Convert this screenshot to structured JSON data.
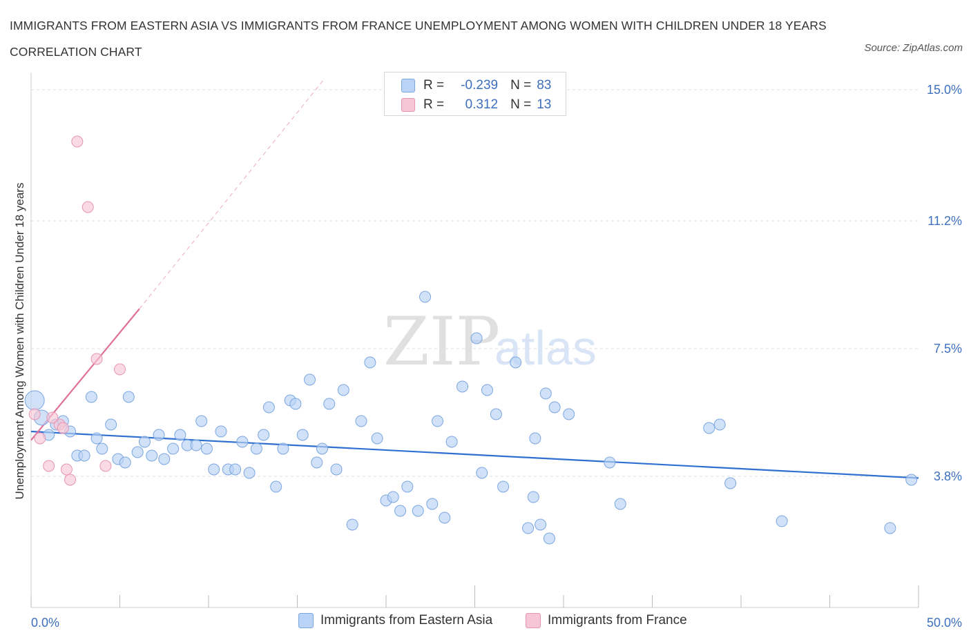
{
  "title": "IMMIGRANTS FROM EASTERN ASIA VS IMMIGRANTS FROM FRANCE UNEMPLOYMENT AMONG WOMEN WITH CHILDREN UNDER 18 YEARS CORRELATION CHART",
  "source": "Source: ZipAtlas.com",
  "watermark": {
    "zip": "ZIP",
    "atlas": "atlas"
  },
  "legend": {
    "rows": [
      {
        "r_label": "R =",
        "r_value": "-0.239",
        "n_label": "N =",
        "n_value": "83",
        "fill": "#b8d3f5",
        "stroke": "#7aa6e0"
      },
      {
        "r_label": "R =",
        "r_value": "0.312",
        "n_label": "N =",
        "n_value": "13",
        "fill": "#f7c6d6",
        "stroke": "#e695b2"
      }
    ]
  },
  "colors": {
    "blue_fill": "#b8d3f5",
    "blue_stroke": "#7aa6e0",
    "blue_line": "#2f6fd0",
    "pink_fill": "#f7c6d6",
    "pink_stroke": "#e695b2",
    "pink_line": "#e0709a",
    "axis_label": "#3d6fbf",
    "grid": "#dddddd"
  },
  "chart_data": {
    "type": "scatter",
    "title": "IMMIGRANTS FROM EASTERN ASIA VS IMMIGRANTS FROM FRANCE UNEMPLOYMENT AMONG WOMEN WITH CHILDREN UNDER 18 YEARS CORRELATION CHART",
    "xlabel": "",
    "ylabel": "Unemployment Among Women with Children Under 18 years",
    "xlim": [
      0,
      50
    ],
    "ylim": [
      0,
      15.3
    ],
    "x_tick_labels": [
      "0.0%",
      "50.0%"
    ],
    "y_ticks": [
      3.8,
      7.5,
      11.2,
      15.0
    ],
    "y_tick_labels": [
      "3.8%",
      "7.5%",
      "11.2%",
      "15.0%"
    ],
    "grid": true,
    "legend_position": "top-center",
    "series": [
      {
        "name": "Immigrants from Eastern Asia",
        "color": "#7aa6e0",
        "points": [
          [
            0.2,
            6.0
          ],
          [
            0.6,
            5.5
          ],
          [
            1.0,
            5.0
          ],
          [
            1.4,
            5.3
          ],
          [
            1.8,
            5.4
          ],
          [
            2.2,
            5.1
          ],
          [
            2.6,
            4.4
          ],
          [
            3.0,
            4.4
          ],
          [
            3.4,
            6.1
          ],
          [
            3.7,
            4.9
          ],
          [
            4.0,
            4.6
          ],
          [
            4.5,
            5.3
          ],
          [
            4.9,
            4.3
          ],
          [
            5.3,
            4.2
          ],
          [
            5.5,
            6.1
          ],
          [
            6.0,
            4.5
          ],
          [
            6.4,
            4.8
          ],
          [
            6.8,
            4.4
          ],
          [
            7.2,
            5.0
          ],
          [
            7.5,
            4.3
          ],
          [
            8.0,
            4.6
          ],
          [
            8.4,
            5.0
          ],
          [
            8.8,
            4.7
          ],
          [
            9.3,
            4.7
          ],
          [
            9.6,
            5.4
          ],
          [
            9.9,
            4.6
          ],
          [
            10.3,
            4.0
          ],
          [
            10.7,
            5.1
          ],
          [
            11.1,
            4.0
          ],
          [
            11.5,
            4.0
          ],
          [
            11.9,
            4.8
          ],
          [
            12.3,
            3.9
          ],
          [
            12.7,
            4.6
          ],
          [
            13.1,
            5.0
          ],
          [
            13.4,
            5.8
          ],
          [
            13.8,
            3.5
          ],
          [
            14.2,
            4.6
          ],
          [
            14.6,
            6.0
          ],
          [
            14.9,
            5.9
          ],
          [
            15.3,
            5.0
          ],
          [
            15.7,
            6.6
          ],
          [
            16.1,
            4.2
          ],
          [
            16.4,
            4.6
          ],
          [
            16.8,
            5.9
          ],
          [
            17.2,
            4.0
          ],
          [
            17.6,
            6.3
          ],
          [
            18.1,
            2.4
          ],
          [
            18.6,
            5.4
          ],
          [
            19.1,
            7.1
          ],
          [
            19.5,
            4.9
          ],
          [
            20.0,
            3.1
          ],
          [
            20.4,
            3.2
          ],
          [
            20.8,
            2.8
          ],
          [
            21.2,
            3.5
          ],
          [
            21.8,
            2.8
          ],
          [
            22.2,
            9.0
          ],
          [
            22.6,
            3.0
          ],
          [
            22.9,
            5.4
          ],
          [
            23.3,
            2.6
          ],
          [
            23.7,
            4.8
          ],
          [
            24.3,
            6.4
          ],
          [
            25.1,
            7.8
          ],
          [
            25.7,
            6.3
          ],
          [
            25.4,
            3.9
          ],
          [
            26.2,
            5.6
          ],
          [
            26.6,
            3.5
          ],
          [
            27.3,
            7.1
          ],
          [
            28.0,
            2.3
          ],
          [
            28.3,
            3.2
          ],
          [
            28.4,
            4.9
          ],
          [
            28.7,
            2.4
          ],
          [
            29.0,
            6.2
          ],
          [
            29.5,
            5.8
          ],
          [
            29.2,
            2.0
          ],
          [
            30.3,
            5.6
          ],
          [
            32.6,
            4.2
          ],
          [
            33.2,
            3.0
          ],
          [
            38.2,
            5.2
          ],
          [
            38.8,
            5.3
          ],
          [
            39.4,
            3.6
          ],
          [
            42.3,
            2.5
          ],
          [
            48.4,
            2.3
          ],
          [
            49.6,
            3.7
          ]
        ]
      },
      {
        "name": "Immigrants from France",
        "color": "#e695b2",
        "points": [
          [
            0.2,
            5.6
          ],
          [
            0.5,
            4.9
          ],
          [
            1.0,
            4.1
          ],
          [
            1.6,
            5.3
          ],
          [
            1.8,
            5.2
          ],
          [
            2.0,
            4.0
          ],
          [
            2.2,
            3.7
          ],
          [
            2.6,
            13.5
          ],
          [
            3.2,
            11.6
          ],
          [
            3.7,
            7.2
          ],
          [
            4.2,
            4.1
          ],
          [
            5.0,
            6.9
          ],
          [
            1.2,
            5.5
          ]
        ]
      }
    ],
    "trend_lines": [
      {
        "series": "Immigrants from Eastern Asia",
        "x0": 0,
        "y0": 5.1,
        "x1": 50,
        "y1": 3.75,
        "style": "solid"
      },
      {
        "series": "Immigrants from France",
        "x0": 0,
        "y0": 4.85,
        "x1": 6.1,
        "y1": 8.65,
        "style": "solid"
      },
      {
        "series": "Immigrants from France",
        "x0": 6.1,
        "y0": 8.65,
        "x1": 16.5,
        "y1": 15.3,
        "style": "dashed"
      }
    ]
  }
}
